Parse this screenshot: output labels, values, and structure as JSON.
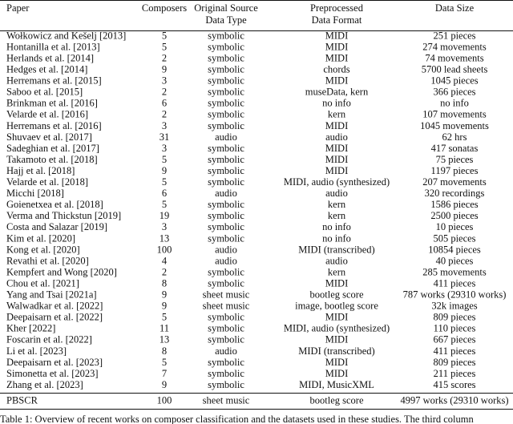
{
  "table": {
    "header": [
      "Paper",
      "Composers",
      [
        "Original Source",
        "Data Type"
      ],
      [
        "Preprocessed",
        "Data Format"
      ],
      "Data Size"
    ],
    "rows": [
      [
        "Wołkowicz and Kešelj [2013]",
        5,
        "symbolic",
        "MIDI",
        "251 pieces"
      ],
      [
        "Hontanilla et al. [2013]",
        5,
        "symbolic",
        "MIDI",
        "274 movements"
      ],
      [
        "Herlands et al. [2014]",
        2,
        "symbolic",
        "MIDI",
        "74 movements"
      ],
      [
        "Hedges et al. [2014]",
        9,
        "symbolic",
        "chords",
        "5700 lead sheets"
      ],
      [
        "Herremans et al. [2015]",
        3,
        "symbolic",
        "MIDI",
        "1045 pieces"
      ],
      [
        "Saboo et al. [2015]",
        2,
        "symbolic",
        "museData, kern",
        "366 pieces"
      ],
      [
        "Brinkman et al. [2016]",
        6,
        "symbolic",
        "no info",
        "no info"
      ],
      [
        "Velarde et al. [2016]",
        2,
        "symbolic",
        "kern",
        "107 movements"
      ],
      [
        "Herremans et al. [2016]",
        3,
        "symbolic",
        "MIDI",
        "1045 movements"
      ],
      [
        "Shuvaev et al. [2017]",
        31,
        "audio",
        "audio",
        "62 hrs"
      ],
      [
        "Sadeghian et al. [2017]",
        3,
        "symbolic",
        "MIDI",
        "417 sonatas"
      ],
      [
        "Takamoto et al. [2018]",
        5,
        "symbolic",
        "MIDI",
        "75 pieces"
      ],
      [
        "Hajj et al. [2018]",
        9,
        "symbolic",
        "MIDI",
        "1197 pieces"
      ],
      [
        "Velarde et al. [2018]",
        5,
        "symbolic",
        "MIDI, audio (synthesized)",
        "207 movements"
      ],
      [
        "Micchi [2018]",
        6,
        "audio",
        "audio",
        "320 recordings"
      ],
      [
        "Goienetxea et al. [2018]",
        5,
        "symbolic",
        "kern",
        "1586 pieces"
      ],
      [
        "Verma and Thickstun [2019]",
        19,
        "symbolic",
        "kern",
        "2500 pieces"
      ],
      [
        "Costa and Salazar [2019]",
        3,
        "symbolic",
        "no info",
        "10 pieces"
      ],
      [
        "Kim et al. [2020]",
        13,
        "symbolic",
        "no info",
        "505 pieces"
      ],
      [
        "Kong et al. [2020]",
        100,
        "audio",
        "MIDI (transcribed)",
        "10854 pieces"
      ],
      [
        "Revathi et al. [2020]",
        4,
        "audio",
        "audio",
        "40 pieces"
      ],
      [
        "Kempfert and Wong [2020]",
        2,
        "symbolic",
        "kern",
        "285 movements"
      ],
      [
        "Chou et al. [2021]",
        8,
        "symbolic",
        "MIDI",
        "411 pieces"
      ],
      [
        "Yang and Tsai [2021a]",
        9,
        "sheet music",
        "bootleg score",
        "787 works (29310 works)"
      ],
      [
        "Walwadkar et al. [2022]",
        9,
        "sheet music",
        "image, bootleg score",
        "32k images"
      ],
      [
        "Deepaisarn et al. [2022]",
        5,
        "symbolic",
        "MIDI",
        "809 pieces"
      ],
      [
        "Kher [2022]",
        11,
        "symbolic",
        "MIDI, audio (synthesized)",
        "110 pieces"
      ],
      [
        "Foscarin et al. [2022]",
        13,
        "symbolic",
        "MIDI",
        "667 pieces"
      ],
      [
        "Li et al. [2023]",
        8,
        "audio",
        "MIDI (transcribed)",
        "411 pieces"
      ],
      [
        "Deepaisarn et al. [2023]",
        5,
        "symbolic",
        "MIDI",
        "809 pieces"
      ],
      [
        "Simonetta et al. [2023]",
        7,
        "symbolic",
        "MIDI",
        "211 pieces"
      ],
      [
        "Zhang et al. [2023]",
        9,
        "symbolic",
        "MIDI, MusicXML",
        "415 scores"
      ]
    ],
    "footer": [
      "PBSCR",
      100,
      "sheet music",
      "bootleg score",
      "4997 works (29310 works)"
    ],
    "caption": "Table 1: Overview of recent works on composer classification and the datasets used in these studies. The third column"
  }
}
